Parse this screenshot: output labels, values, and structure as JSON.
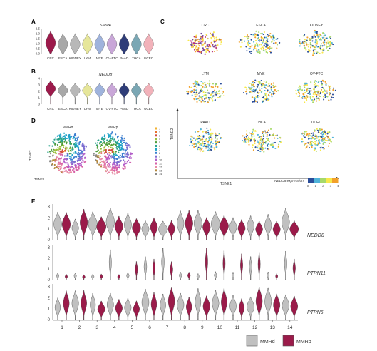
{
  "panel_labels": {
    "a": "A",
    "b": "B",
    "c": "C",
    "d": "D",
    "e": "E"
  },
  "colors": {
    "cancer": [
      "#9c1a4b",
      "#a8a8a8",
      "#b8b8b8",
      "#e6e69a",
      "#9fb3dc",
      "#c9a7d8",
      "#2f3d78",
      "#7ba7b4",
      "#f2b2ba"
    ],
    "mmrd": "#c0c0c0",
    "mmrp": "#9b1b4a",
    "expression_scale": [
      "#2a4d9a",
      "#4fb3d9",
      "#a6d96a",
      "#f7e84a",
      "#f2a02a"
    ],
    "clusters": [
      "#f2b233",
      "#e8722b",
      "#d04a3a",
      "#9bbf3b",
      "#4f9d3b",
      "#2aa38a",
      "#1ea3c8",
      "#3d7fd0",
      "#7d6fd1",
      "#b35ec9",
      "#d863a8",
      "#e88aa4",
      "#b4873a",
      "#8a8a8a"
    ]
  },
  "panel_a": {
    "gene": "SIRPA",
    "y_ticks": [
      "2.5",
      "2.0",
      "1.5",
      "1.0",
      "0.5",
      "0.0"
    ],
    "categories": [
      "CRC",
      "ESCA",
      "KIDNEY",
      "LYM",
      "MYE",
      "OV-FTC",
      "PAAD",
      "THCA",
      "UCEC"
    ]
  },
  "panel_b": {
    "gene": "NEDD8",
    "y_ticks": [
      "4",
      "3",
      "2",
      "1",
      "0"
    ],
    "categories": [
      "CRC",
      "ESCA",
      "KIDNEY",
      "LYM",
      "MYE",
      "OV-FTC",
      "PAAD",
      "THCA",
      "UCEC"
    ]
  },
  "panel_c": {
    "titles": [
      "CRC",
      "ESCA",
      "KIDNEY",
      "LYM",
      "MYE",
      "OV-FTC",
      "PAAD",
      "THCA",
      "UCEC"
    ],
    "x_axis": "TSNE1",
    "y_axis": "TSNE2",
    "legend_title": "NEDD8 expression",
    "legend_ticks": [
      "0",
      "1",
      "2",
      "3",
      "4"
    ]
  },
  "panel_d": {
    "titles": [
      "MMRd",
      "MMRp"
    ],
    "x_axis": "TSNE1",
    "y_axis": "TSNE2",
    "cluster_labels": [
      "1",
      "2",
      "3",
      "4",
      "5",
      "6",
      "7",
      "8",
      "9",
      "10",
      "11",
      "12",
      "13",
      "14"
    ]
  },
  "panel_e": {
    "genes": [
      "NEDD8",
      "PTPN11",
      "PTPN6"
    ],
    "y_ticks": [
      "3",
      "2",
      "1",
      "0"
    ],
    "clusters": [
      "1",
      "2",
      "3",
      "4",
      "5",
      "6",
      "7",
      "8",
      "9",
      "10",
      "11",
      "12",
      "13",
      "14"
    ],
    "legend": [
      {
        "label": "MMRd",
        "color": "#c0c0c0"
      },
      {
        "label": "MMRp",
        "color": "#9b1b4a"
      }
    ]
  }
}
